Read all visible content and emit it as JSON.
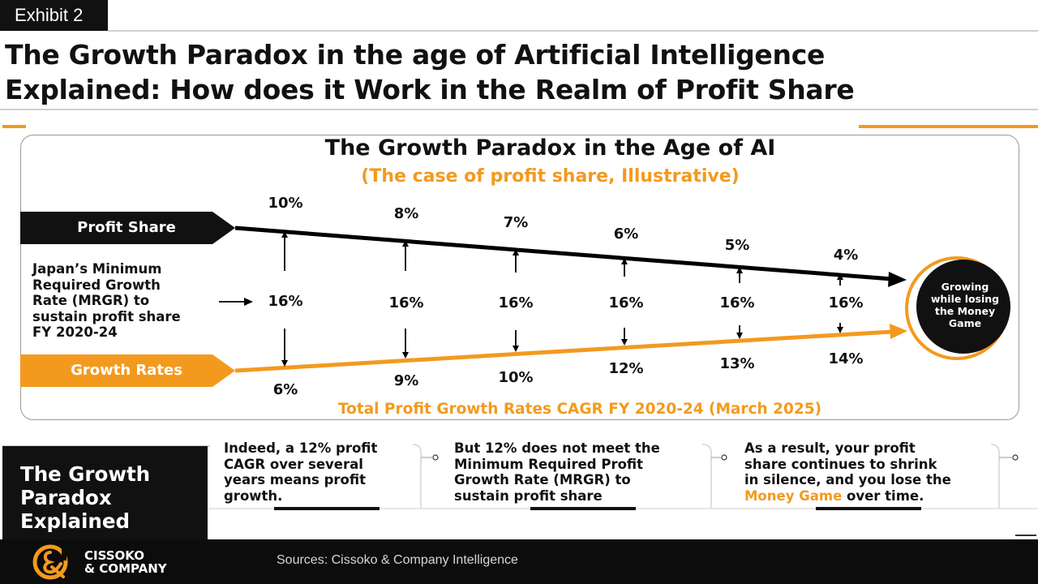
{
  "exhibit": "Exhibit 2",
  "headline": {
    "line1": "The Growth Paradox in the age of Artificial Intelligence",
    "line2": "Explained: How does it Work in the Realm of Profit Share"
  },
  "panel": {
    "title": "The Growth Paradox in the Age of AI",
    "subtitle": "(The case of profit share, Illustrative)",
    "profit_share_label": "Profit Share",
    "growth_rates_label": "Growth Rates",
    "mrgr_label": [
      "Japan’s Minimum",
      "Required Growth",
      "Rate (MRGR) to",
      "sustain profit share",
      "FY 2020-24"
    ],
    "cagr_label": "Total Profit Growth Rates CAGR FY 2020-24 (March 2025)",
    "circle_label": [
      "Growing",
      "while losing",
      "the Money",
      "Game"
    ]
  },
  "chart_data": {
    "type": "line",
    "periods": 6,
    "series": [
      {
        "name": "Profit Share",
        "values": [
          "10%",
          "8%",
          "7%",
          "6%",
          "5%",
          "4%"
        ],
        "color": "#000000"
      },
      {
        "name": "Minimum Required Growth Rate",
        "values": [
          "16%",
          "16%",
          "16%",
          "16%",
          "16%",
          "16%"
        ]
      },
      {
        "name": "Growth Rates",
        "values": [
          "6%",
          "9%",
          "10%",
          "12%",
          "13%",
          "14%"
        ],
        "color": "#f39a1e"
      }
    ]
  },
  "explained": {
    "label": [
      "The Growth",
      "Paradox",
      "Explained"
    ],
    "cards": [
      {
        "lines": [
          "Indeed, a 12% profit",
          "CAGR over several",
          "years means profit",
          "growth."
        ]
      },
      {
        "lines": [
          "But 12% does not meet the",
          "Minimum Required Profit",
          "Growth Rate (MRGR) to",
          "sustain profit share"
        ]
      },
      {
        "lines": [
          "As a result, your profit",
          "share continues to shrink",
          "in silence, and you lose the"
        ],
        "highlight": "Money Game",
        "tail": " over time."
      }
    ]
  },
  "footer": {
    "logo_line1": "CISSOKO",
    "logo_line2": "& COMPANY",
    "sources": "Sources: Cissoko & Company Intelligence"
  },
  "colors": {
    "accent": "#f39a1e",
    "dark": "#111111"
  }
}
